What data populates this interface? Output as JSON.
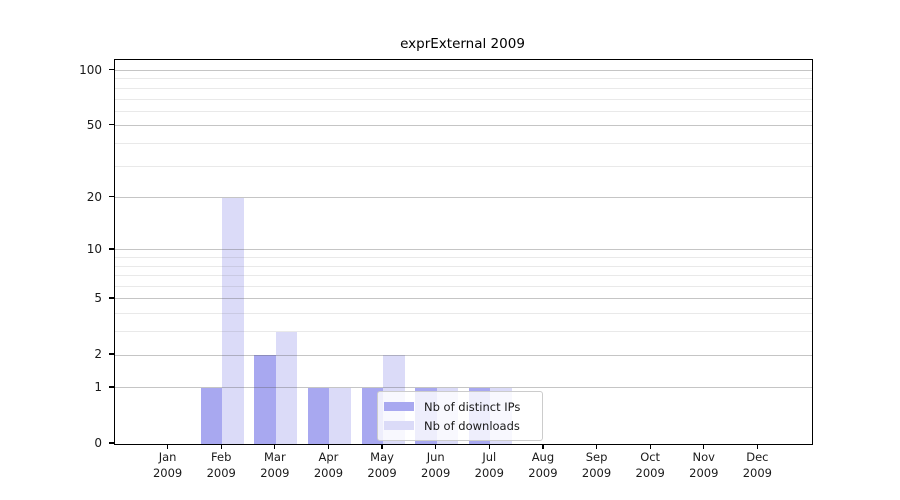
{
  "chart_data": {
    "type": "bar",
    "title": "exprExternal 2009",
    "categories": [
      "Jan",
      "Feb",
      "Mar",
      "Apr",
      "May",
      "Jun",
      "Jul",
      "Aug",
      "Sep",
      "Oct",
      "Nov",
      "Dec"
    ],
    "x_tick_second_line": [
      "2009",
      "2009",
      "2009",
      "2009",
      "2009",
      "2009",
      "2009",
      "2009",
      "2009",
      "2009",
      "2009",
      "2009"
    ],
    "series": [
      {
        "name": "Nb of distinct IPs",
        "color": "#a8a8f0",
        "values": [
          0,
          1,
          2,
          1,
          1,
          1,
          1,
          0,
          0,
          0,
          0,
          0
        ]
      },
      {
        "name": "Nb of downloads",
        "color": "#dbdbf8",
        "values": [
          0,
          20,
          3,
          1,
          2,
          1,
          1,
          0,
          0,
          0,
          0,
          0
        ]
      }
    ],
    "y_ticks": [
      0,
      1,
      2,
      5,
      10,
      20,
      50,
      100
    ],
    "y_minor_gridlines": [
      3,
      4,
      6,
      7,
      8,
      9,
      30,
      40,
      60,
      70,
      80,
      90
    ],
    "y_scale": "log10(1+value)",
    "y_axis_top_value": 114,
    "ylim": [
      0,
      100
    ],
    "xlabel": "",
    "ylabel": "",
    "grid": true,
    "legend_position": "lower center-right inside plot"
  },
  "colors": {
    "bar_distinct_ips": "#a8a8f0",
    "bar_downloads": "#dbdbf8",
    "major_grid": "rgba(90,90,90,0.35)",
    "minor_grid": "rgba(120,120,120,0.16)",
    "spine": "#000000",
    "text": "#1a1a1a",
    "legend_background": "rgba(255,255,255,0.8)",
    "legend_border": "#cccccc"
  }
}
